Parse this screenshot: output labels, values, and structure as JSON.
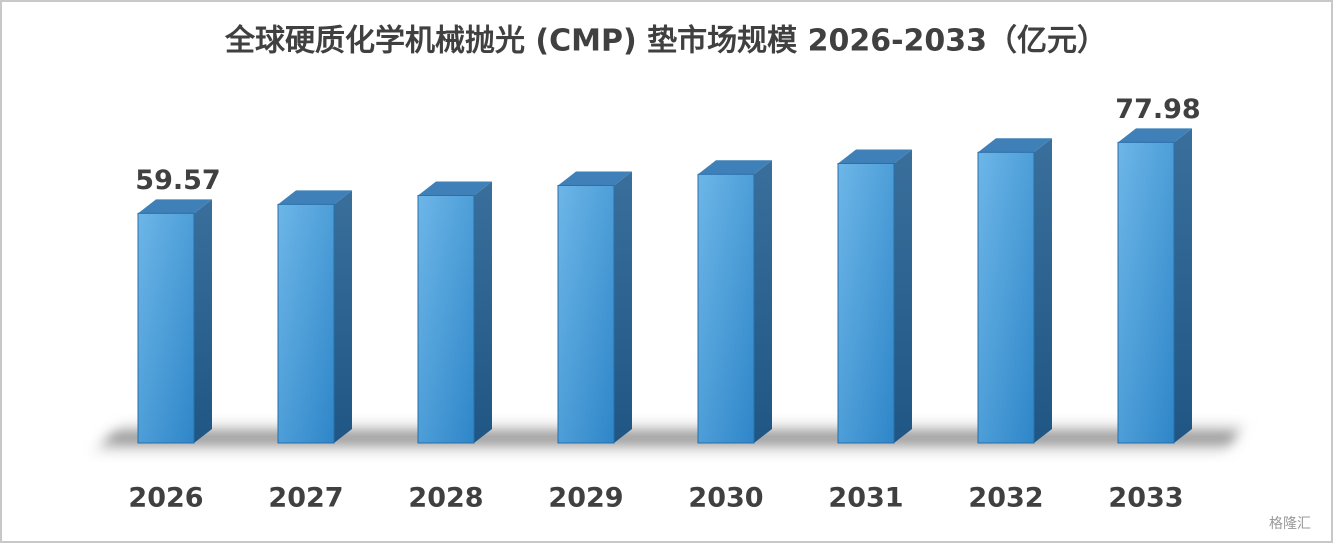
{
  "chart_data": {
    "type": "bar3d",
    "title": "全球硬质化学机械抛光 (CMP) 垫市场规模 2026-2033（亿元）",
    "categories": [
      "2026",
      "2027",
      "2028",
      "2029",
      "2030",
      "2031",
      "2032",
      "2033"
    ],
    "values": [
      59.57,
      61.9,
      64.2,
      66.8,
      69.7,
      72.5,
      75.4,
      77.98
    ],
    "value_labels": [
      "59.57",
      null,
      null,
      null,
      null,
      null,
      null,
      "77.98"
    ],
    "color": "#4fa3df",
    "ylim": [
      0,
      90
    ]
  },
  "watermark": "格隆汇"
}
